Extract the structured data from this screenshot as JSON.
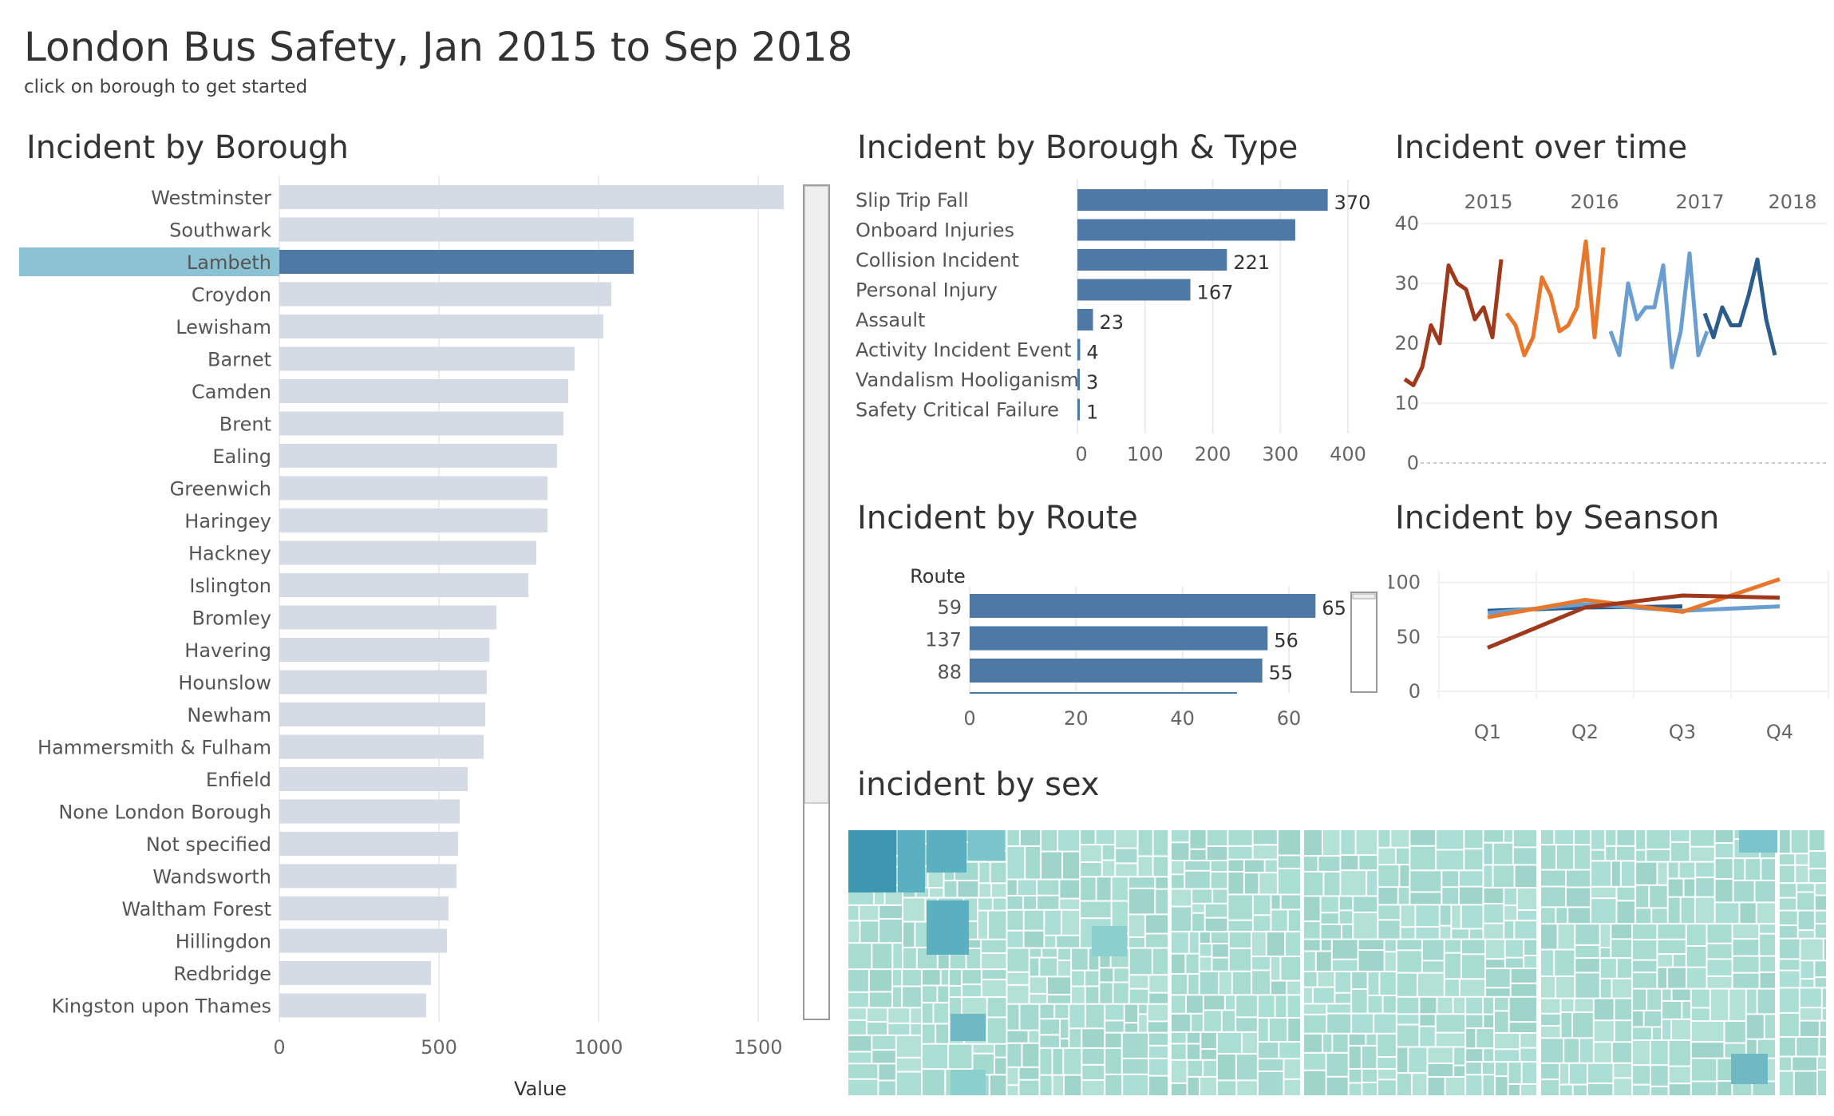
{
  "header": {
    "title": "London Bus Safety, Jan 2015 to Sep 2018",
    "subtitle": "click on borough to get started"
  },
  "panels": {
    "borough": "Incident by Borough",
    "type": "Incident by Borough & Type",
    "time": "Incident over time",
    "route": "Incident by Route",
    "season": "Incident by Seanson",
    "sex": "incident by sex"
  },
  "colors": {
    "bar_default": "#d4dbe4",
    "bar_selected": "#4e79a7",
    "highlight": "#8cc3d4",
    "line_2015": "#a0391c",
    "line_2016": "#e8762b",
    "line_2017": "#6a9ed0",
    "line_2018": "#2b5d8c",
    "treemap_base": "#a8dcd1"
  },
  "chart_data": [
    {
      "type": "bar",
      "name": "borough",
      "orientation": "horizontal",
      "categories": [
        "Westminster",
        "Southwark",
        "Lambeth",
        "Croydon",
        "Lewisham",
        "Barnet",
        "Camden",
        "Brent",
        "Ealing",
        "Greenwich",
        "Haringey",
        "Hackney",
        "Islington",
        "Bromley",
        "Havering",
        "Hounslow",
        "Newham",
        "Hammersmith & Fulham",
        "Enfield",
        "None London Borough",
        "Not specified",
        "Wandsworth",
        "Waltham Forest",
        "Hillingdon",
        "Redbridge",
        "Kingston upon Thames"
      ],
      "values": [
        1580,
        1110,
        1110,
        1040,
        1015,
        925,
        905,
        890,
        870,
        840,
        840,
        805,
        780,
        680,
        658,
        650,
        645,
        640,
        590,
        565,
        560,
        555,
        530,
        525,
        475,
        460
      ],
      "selected": "Lambeth",
      "xticks": [
        0,
        500,
        1000,
        1500
      ],
      "xlim": [
        0,
        1750
      ],
      "xlabel": "Value",
      "grid": true
    },
    {
      "type": "bar",
      "name": "borough_type",
      "orientation": "horizontal",
      "categories": [
        "Slip Trip Fall",
        "Onboard Injuries",
        "Collision Incident",
        "Personal Injury",
        "Assault",
        "Activity Incident Event",
        "Vandalism Hooliganism",
        "Safety Critical Failure"
      ],
      "values": [
        370,
        322,
        221,
        167,
        23,
        4,
        3,
        1
      ],
      "labels": [
        "370",
        "",
        "221",
        "167",
        "23",
        "4",
        "3",
        "1"
      ],
      "xticks": [
        0,
        100,
        200,
        300,
        400
      ],
      "xlim": [
        0,
        420
      ]
    },
    {
      "type": "line",
      "name": "over_time",
      "years": [
        "2015",
        "2016",
        "2017",
        "2018"
      ],
      "series": [
        {
          "values": [
            14,
            13,
            16,
            23,
            20,
            33,
            30,
            29,
            24,
            26,
            21,
            34
          ]
        },
        {
          "values": [
            25,
            23,
            18,
            21,
            31,
            28,
            22,
            23,
            26,
            37,
            21,
            36
          ]
        },
        {
          "values": [
            22,
            18,
            30,
            24,
            26,
            26,
            33,
            16,
            22,
            35,
            18,
            22
          ]
        },
        {
          "values": [
            25,
            21,
            26,
            23,
            23,
            28,
            34,
            24,
            18
          ]
        }
      ],
      "yticks": [
        0,
        10,
        20,
        30,
        40
      ],
      "ylim": [
        0,
        42
      ]
    },
    {
      "type": "bar",
      "name": "route",
      "orientation": "horizontal",
      "column_header": "Route",
      "categories": [
        "59",
        "137",
        "88"
      ],
      "values": [
        65,
        56,
        55
      ],
      "xticks": [
        0,
        20,
        40,
        60
      ],
      "xlim": [
        0,
        75
      ]
    },
    {
      "type": "line",
      "name": "season",
      "categories": [
        "Q1",
        "Q2",
        "Q3",
        "Q4"
      ],
      "series": [
        {
          "values": [
            74,
            77,
            78,
            null
          ]
        },
        {
          "values": [
            72,
            80,
            74,
            78
          ]
        },
        {
          "values": [
            68,
            84,
            73,
            103
          ]
        },
        {
          "values": [
            40,
            77,
            88,
            86
          ]
        }
      ],
      "yticks": [
        0,
        50,
        100
      ],
      "ylim": [
        0,
        110
      ]
    },
    {
      "type": "heatmap",
      "name": "sex_treemap",
      "groups": 6
    }
  ]
}
